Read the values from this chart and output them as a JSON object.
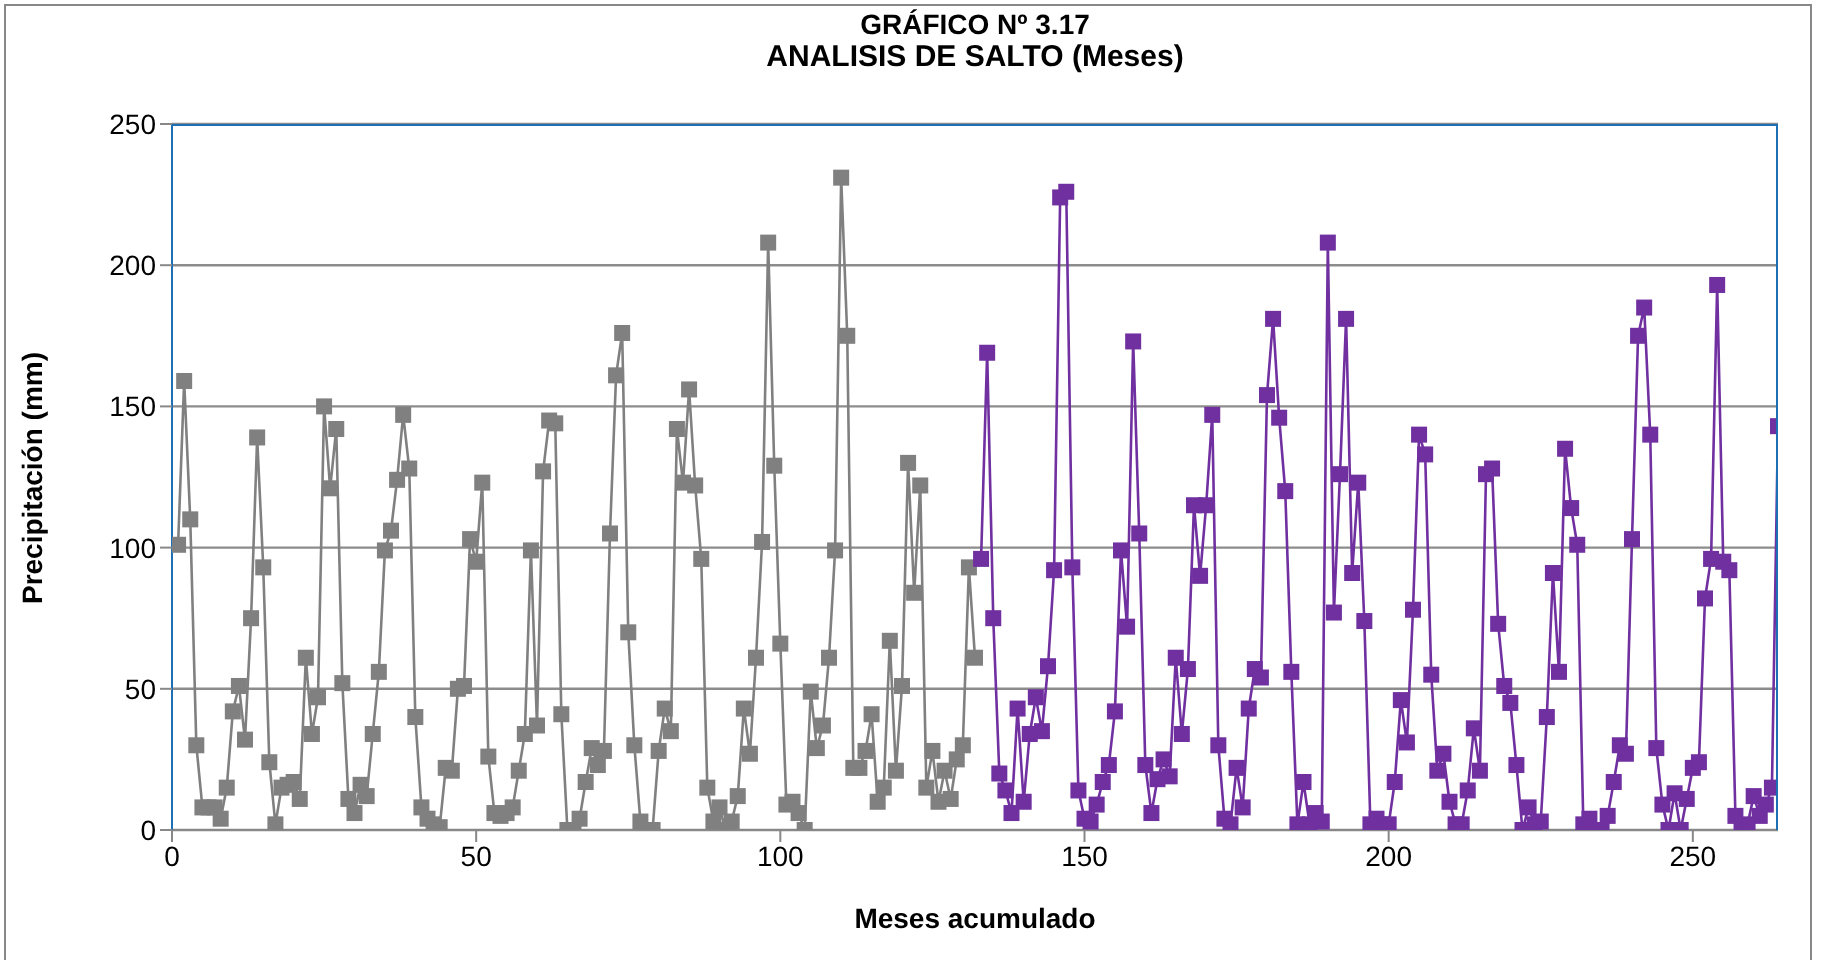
{
  "chart_data": {
    "type": "line",
    "title": "GRÁFICO  Nº 3.17",
    "subtitle": "ANALISIS DE SALTO (Meses)",
    "xlabel": "Meses acumulado",
    "ylabel": "Precipitación  (mm)",
    "xlim": [
      0,
      264
    ],
    "xticks": [
      0,
      50,
      100,
      150,
      200,
      250
    ],
    "ylim": [
      0,
      250
    ],
    "yticks": [
      0,
      50,
      100,
      150,
      200,
      250
    ],
    "grid": "y",
    "marker": "square",
    "line_style": "solid",
    "series": [
      {
        "color": "#808080",
        "x": [
          1,
          2,
          3,
          4,
          5,
          6,
          7,
          8,
          9,
          10,
          11,
          12,
          13,
          14,
          15,
          16,
          17,
          18,
          19,
          20,
          21,
          22,
          23,
          24,
          25,
          26,
          27,
          28,
          29,
          30,
          31,
          32,
          33,
          34,
          35,
          36,
          37,
          38,
          39,
          40,
          41,
          42,
          43,
          44,
          45,
          46,
          47,
          48,
          49,
          50,
          51,
          52,
          53,
          54,
          55,
          56,
          57,
          58,
          59,
          60,
          61,
          62,
          63,
          64,
          65,
          66,
          67,
          68,
          69,
          70,
          71,
          72,
          73,
          74,
          75,
          76,
          77,
          78,
          79,
          80,
          81,
          82,
          83,
          84,
          85,
          86,
          87,
          88,
          89,
          90,
          91,
          92,
          93,
          94,
          95,
          96,
          97,
          98,
          99,
          100,
          101,
          102,
          103,
          104,
          105,
          106,
          107,
          108,
          109,
          110,
          111,
          112,
          113,
          114,
          115,
          116,
          117,
          118,
          119,
          120,
          121,
          122,
          123,
          124,
          125,
          126,
          127,
          128,
          129,
          130,
          131,
          132
        ],
        "values": [
          101,
          159,
          110,
          30,
          8,
          8,
          8,
          4,
          15,
          42,
          51,
          32,
          75,
          139,
          93,
          24,
          2,
          15,
          16,
          17,
          11,
          61,
          34,
          47,
          150,
          121,
          142,
          52,
          11,
          6,
          16,
          12,
          34,
          56,
          99,
          106,
          124,
          147,
          128,
          40,
          8,
          4,
          2,
          1,
          22,
          21,
          50,
          51,
          103,
          95,
          123,
          26,
          6,
          5,
          6,
          8,
          21,
          34,
          99,
          37,
          127,
          145,
          144,
          41,
          0,
          0,
          4,
          17,
          29,
          23,
          28,
          105,
          161,
          176,
          70,
          30,
          3,
          0,
          0,
          28,
          43,
          35,
          142,
          123,
          156,
          122,
          96,
          15,
          3,
          8,
          0,
          3,
          12,
          43,
          27,
          61,
          102,
          208,
          129,
          66,
          9,
          10,
          6,
          0,
          49,
          29,
          37,
          61,
          99,
          231,
          175,
          22,
          22,
          28,
          41,
          10,
          15,
          67,
          21,
          51,
          130,
          84,
          122,
          15,
          28,
          10,
          21,
          11,
          25,
          30,
          93,
          61
        ]
      },
      {
        "color": "#7030a0",
        "x": [
          133,
          134,
          135,
          136,
          137,
          138,
          139,
          140,
          141,
          142,
          143,
          144,
          145,
          146,
          147,
          148,
          149,
          150,
          151,
          152,
          153,
          154,
          155,
          156,
          157,
          158,
          159,
          160,
          161,
          162,
          163,
          164,
          165,
          166,
          167,
          168,
          169,
          170,
          171,
          172,
          173,
          174,
          175,
          176,
          177,
          178,
          179,
          180,
          181,
          182,
          183,
          184,
          185,
          186,
          187,
          188,
          189,
          190,
          191,
          192,
          193,
          194,
          195,
          196,
          197,
          198,
          199,
          200,
          201,
          202,
          203,
          204,
          205,
          206,
          207,
          208,
          209,
          210,
          211,
          212,
          213,
          214,
          215,
          216,
          217,
          218,
          219,
          220,
          221,
          222,
          223,
          224,
          225,
          226,
          227,
          228,
          229,
          230,
          231,
          232,
          233,
          234,
          235,
          236,
          237,
          238,
          239,
          240,
          241,
          242,
          243,
          244,
          245,
          246,
          247,
          248,
          249,
          250,
          251,
          252,
          253,
          254,
          255,
          256,
          257,
          258,
          259,
          260,
          261,
          262,
          263,
          264
        ],
        "values": [
          96,
          169,
          75,
          20,
          14,
          6,
          43,
          10,
          34,
          47,
          35,
          58,
          92,
          224,
          226,
          93,
          14,
          4,
          3,
          9,
          17,
          23,
          42,
          99,
          72,
          173,
          105,
          23,
          6,
          18,
          25,
          19,
          61,
          34,
          57,
          115,
          90,
          115,
          147,
          30,
          4,
          2,
          22,
          8,
          43,
          57,
          54,
          154,
          181,
          146,
          120,
          56,
          2,
          17,
          2,
          6,
          3,
          208,
          77,
          126,
          181,
          91,
          123,
          74,
          2,
          4,
          2,
          2,
          17,
          46,
          31,
          78,
          140,
          133,
          55,
          21,
          27,
          10,
          2,
          2,
          14,
          36,
          21,
          126,
          128,
          73,
          51,
          45,
          23,
          0,
          8,
          2,
          3,
          40,
          91,
          56,
          135,
          114,
          101,
          2,
          4,
          0,
          0,
          5,
          17,
          30,
          27,
          103,
          175,
          185,
          140,
          29,
          9,
          0,
          13,
          0,
          11,
          22,
          24,
          82,
          96,
          193,
          95,
          92,
          5,
          0,
          2,
          12,
          5,
          9,
          15,
          143
        ]
      }
    ]
  }
}
